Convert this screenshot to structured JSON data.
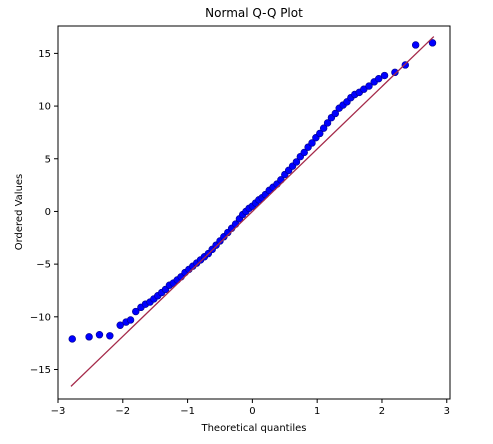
{
  "chart_data": {
    "type": "scatter",
    "title": "Normal Q-Q Plot",
    "xlabel": "Theoretical quantiles",
    "ylabel": "Ordered Values",
    "xlim": [
      -3.0,
      3.05
    ],
    "ylim": [
      -17.8,
      17.6
    ],
    "xticks": [
      -3,
      -2,
      -1,
      0,
      1,
      2,
      3
    ],
    "xtick_labels": [
      "−3",
      "−2",
      "−1",
      "0",
      "1",
      "2",
      "3"
    ],
    "yticks": [
      -15,
      -10,
      -5,
      0,
      5,
      10,
      15
    ],
    "ytick_labels": [
      "−15",
      "−10",
      "−5",
      "0",
      "5",
      "10",
      "15"
    ],
    "grid": false,
    "point_color": "#0000ff",
    "point_edge_color": "#00008b",
    "line_color": "#a52a4a",
    "fit_line": {
      "x": [
        -2.8,
        2.8
      ],
      "y": [
        -16.6,
        16.6
      ]
    },
    "points": {
      "x": [
        -2.78,
        -2.52,
        -2.36,
        -2.2,
        -2.04,
        -1.95,
        -1.88,
        -1.8,
        -1.72,
        -1.65,
        -1.58,
        -1.52,
        -1.46,
        -1.4,
        -1.34,
        -1.28,
        -1.22,
        -1.16,
        -1.1,
        -1.04,
        -0.98,
        -0.92,
        -0.86,
        -0.8,
        -0.74,
        -0.68,
        -0.62,
        -0.56,
        -0.5,
        -0.44,
        -0.38,
        -0.32,
        -0.26,
        -0.2,
        -0.15,
        -0.1,
        -0.05,
        0.0,
        0.05,
        0.1,
        0.15,
        0.2,
        0.26,
        0.32,
        0.38,
        0.44,
        0.5,
        0.56,
        0.62,
        0.68,
        0.74,
        0.8,
        0.86,
        0.92,
        0.98,
        1.04,
        1.1,
        1.16,
        1.22,
        1.28,
        1.34,
        1.4,
        1.46,
        1.52,
        1.58,
        1.65,
        1.72,
        1.8,
        1.88,
        1.95,
        2.04,
        2.2,
        2.36,
        2.52,
        2.78
      ],
      "y": [
        -12.1,
        -11.9,
        -11.7,
        -11.8,
        -10.8,
        -10.5,
        -10.3,
        -9.5,
        -9.1,
        -8.8,
        -8.6,
        -8.3,
        -8.0,
        -7.7,
        -7.4,
        -7.0,
        -6.8,
        -6.5,
        -6.2,
        -5.8,
        -5.5,
        -5.2,
        -4.9,
        -4.6,
        -4.3,
        -4.0,
        -3.6,
        -3.2,
        -2.8,
        -2.4,
        -2.0,
        -1.6,
        -1.2,
        -0.7,
        -0.3,
        0.0,
        0.3,
        0.5,
        0.8,
        1.1,
        1.3,
        1.6,
        2.0,
        2.3,
        2.6,
        3.0,
        3.5,
        3.9,
        4.3,
        4.7,
        5.2,
        5.6,
        6.1,
        6.5,
        7.0,
        7.4,
        7.9,
        8.4,
        8.9,
        9.3,
        9.8,
        10.1,
        10.4,
        10.8,
        11.1,
        11.3,
        11.6,
        11.9,
        12.3,
        12.6,
        12.9,
        13.2,
        13.9,
        15.8,
        16.0
      ]
    }
  }
}
